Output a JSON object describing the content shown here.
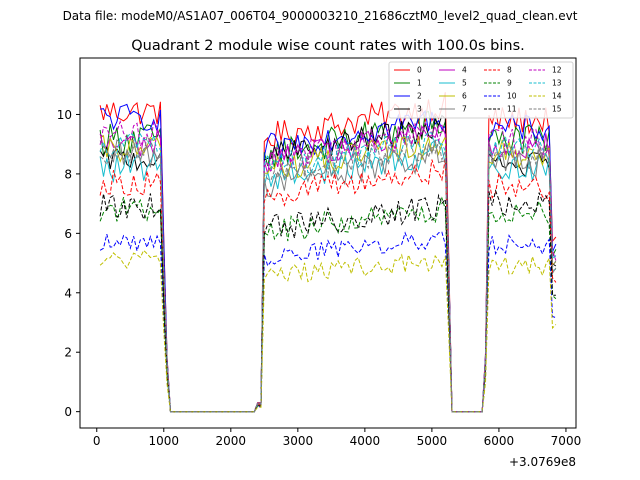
{
  "figure": {
    "suptitle": "Data file: modeM0/AS1A07_006T04_9000003210_21686cztM0_level2_quad_clean.evt"
  },
  "chart_data": {
    "type": "line",
    "title": "Quadrant 2 module wise count rates with 100.0s bins.",
    "xlabel": "",
    "ylabel": "",
    "x_offset_label": "+3.0769e8",
    "xlim": [
      -250,
      7150
    ],
    "ylim": [
      -0.55,
      11.9
    ],
    "xticks": [
      0,
      1000,
      2000,
      3000,
      4000,
      5000,
      6000,
      7000
    ],
    "xtick_labels": [
      "0",
      "1000",
      "2000",
      "3000",
      "4000",
      "5000",
      "6000",
      "7000"
    ],
    "yticks": [
      0,
      2,
      4,
      6,
      8,
      10
    ],
    "ytick_labels": [
      "0",
      "2",
      "4",
      "6",
      "8",
      "10"
    ],
    "grid": false,
    "legend_position": "top-right",
    "legend_columns": 4,
    "x_segments": [
      [
        50,
        1050
      ],
      [
        2450,
        5350
      ],
      [
        5850,
        6850
      ]
    ],
    "x_step": 50,
    "series": [
      {
        "name": "0",
        "color": "#ff0000",
        "dash": "solid",
        "base": 10.1,
        "amp": 0.22,
        "seg2_base": 9.9,
        "seg3_base": 9.8
      },
      {
        "name": "1",
        "color": "#008000",
        "dash": "solid",
        "base": 9.2,
        "amp": 0.25,
        "seg2_base": 9.3,
        "seg3_base": 9.1
      },
      {
        "name": "2",
        "color": "#0000ff",
        "dash": "solid",
        "base": 9.9,
        "amp": 0.22,
        "seg2_base": 9.5,
        "seg3_base": 9.5
      },
      {
        "name": "3",
        "color": "#000000",
        "dash": "solid",
        "base": 8.5,
        "amp": 0.2,
        "seg2_base": 9.2,
        "seg3_base": 8.3
      },
      {
        "name": "4",
        "color": "#bf00bf",
        "dash": "solid",
        "base": 9.0,
        "amp": 0.22,
        "seg2_base": 9.0,
        "seg3_base": 8.9
      },
      {
        "name": "5",
        "color": "#17becf",
        "dash": "solid",
        "base": 8.2,
        "amp": 0.22,
        "seg2_base": 8.4,
        "seg3_base": 8.2
      },
      {
        "name": "6",
        "color": "#bfbf00",
        "dash": "solid",
        "base": 8.8,
        "amp": 0.22,
        "seg2_base": 8.7,
        "seg3_base": 8.7
      },
      {
        "name": "7",
        "color": "#7f7f7f",
        "dash": "solid",
        "base": 8.6,
        "amp": 0.25,
        "seg2_base": 8.3,
        "seg3_base": 8.4
      },
      {
        "name": "8",
        "color": "#ff0000",
        "dash": "dashed",
        "base": 7.7,
        "amp": 0.2,
        "seg2_base": 7.8,
        "seg3_base": 7.6
      },
      {
        "name": "9",
        "color": "#008000",
        "dash": "dashed",
        "base": 6.8,
        "amp": 0.2,
        "seg2_base": 6.5,
        "seg3_base": 6.7
      },
      {
        "name": "10",
        "color": "#0000ff",
        "dash": "dashed",
        "base": 5.7,
        "amp": 0.15,
        "seg2_base": 5.6,
        "seg3_base": 5.6
      },
      {
        "name": "11",
        "color": "#000000",
        "dash": "dashed",
        "base": 6.9,
        "amp": 0.2,
        "seg2_base": 6.6,
        "seg3_base": 7.0
      },
      {
        "name": "12",
        "color": "#bf00bf",
        "dash": "dashed",
        "base": 9.3,
        "amp": 0.22,
        "seg2_base": 9.1,
        "seg3_base": 9.1
      },
      {
        "name": "13",
        "color": "#17becf",
        "dash": "dashed",
        "base": 9.0,
        "amp": 0.2,
        "seg2_base": 8.8,
        "seg3_base": 8.8
      },
      {
        "name": "14",
        "color": "#bfbf00",
        "dash": "dashed",
        "base": 5.1,
        "amp": 0.15,
        "seg2_base": 4.9,
        "seg3_base": 4.9
      },
      {
        "name": "15",
        "color": "#7f7f7f",
        "dash": "dashed",
        "base": 8.8,
        "amp": 0.22,
        "seg2_base": 8.6,
        "seg3_base": 8.6
      }
    ]
  }
}
